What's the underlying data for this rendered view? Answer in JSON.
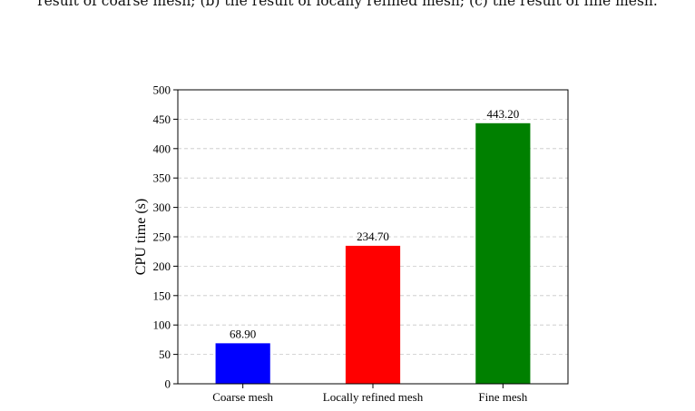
{
  "caption": {
    "text": "result of coarse mesh; (b) the result of locally refined mesh; (c) the result of fine mesh."
  },
  "chart_data": {
    "type": "bar",
    "categories": [
      "Coarse mesh",
      "Locally refined mesh",
      "Fine mesh"
    ],
    "values": [
      68.9,
      234.7,
      443.2
    ],
    "data_labels": [
      "68.90",
      "234.70",
      "443.20"
    ],
    "colors": [
      "#0000ff",
      "#ff0000",
      "#008000"
    ],
    "ylabel": "CPU time (s)",
    "xlabel": "",
    "ylim": [
      0,
      500
    ],
    "yticks": [
      0,
      50,
      100,
      150,
      200,
      250,
      300,
      350,
      400,
      450,
      500
    ],
    "grid": {
      "y": true,
      "style": "dashed"
    },
    "legend": "none"
  }
}
